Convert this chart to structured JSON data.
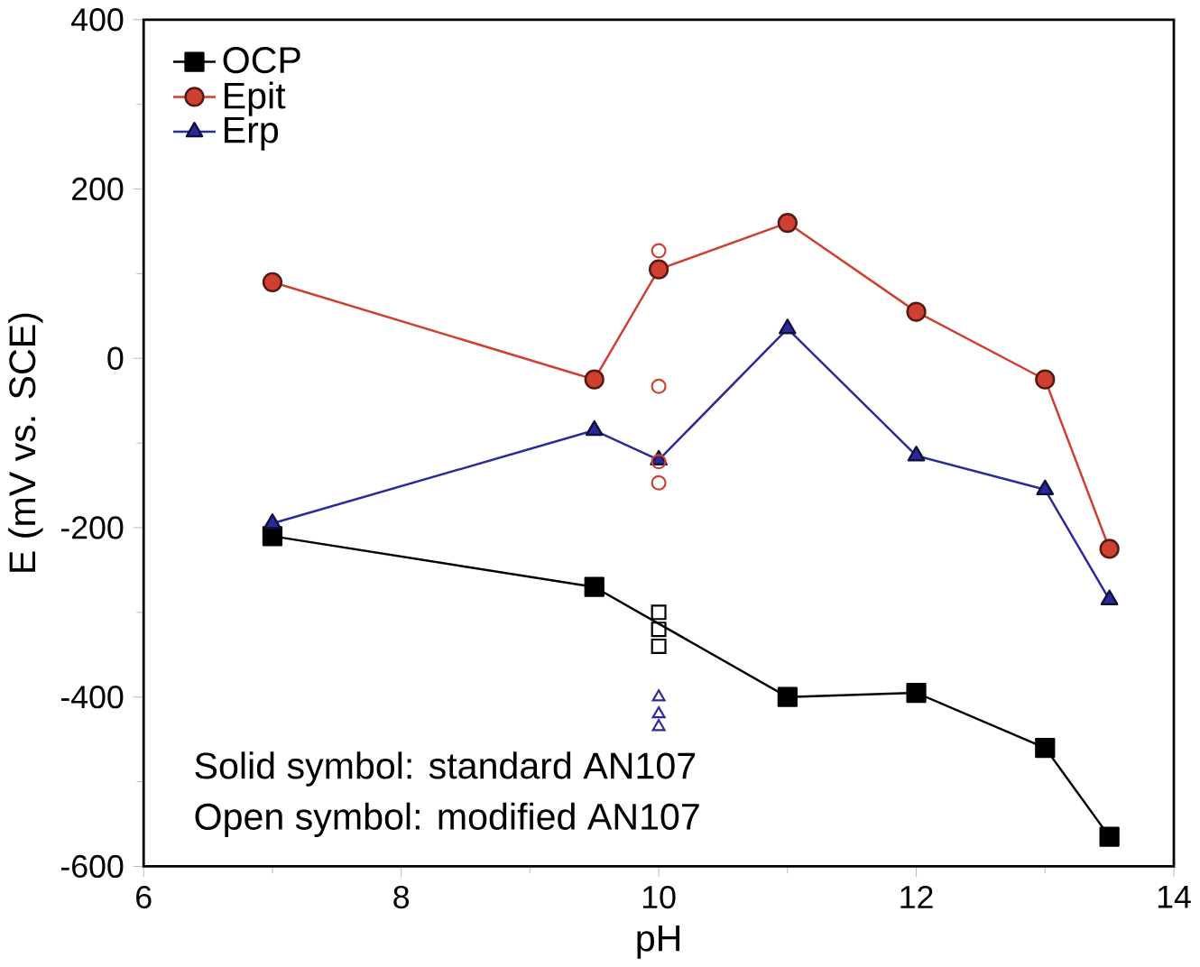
{
  "chart_data": {
    "type": "line",
    "xlabel": "pH",
    "ylabel": "E (mV vs. SCE)",
    "xlim": [
      6,
      14
    ],
    "xticks": [
      6,
      8,
      10,
      12,
      14
    ],
    "ylim": [
      -600,
      400
    ],
    "yticks": [
      -600,
      -400,
      -200,
      0,
      200,
      400
    ],
    "grid": false,
    "legend": "top left",
    "series": [
      {
        "name": "OCP",
        "color": "#000000",
        "marker": "square",
        "x": [
          7.0,
          9.5,
          11.0,
          12.0,
          13.0,
          13.5
        ],
        "values": [
          -210,
          -270,
          -400,
          -395,
          -460,
          -565
        ]
      },
      {
        "name": "Epit",
        "color": "#d04030",
        "marker": "circle",
        "x": [
          7.0,
          9.5,
          10.0,
          11.0,
          12.0,
          13.0,
          13.5
        ],
        "values": [
          90,
          -25,
          105,
          160,
          55,
          -25,
          -225
        ]
      },
      {
        "name": "Erp",
        "color": "#2a2a9a",
        "marker": "triangle",
        "x": [
          7.0,
          9.5,
          10.0,
          11.0,
          12.0,
          13.0,
          13.5
        ],
        "values": [
          -195,
          -85,
          -120,
          35,
          -115,
          -155,
          -285
        ]
      },
      {
        "type": "scatter",
        "color": "#000000",
        "marker": "square",
        "x": [
          10,
          10,
          10
        ],
        "values": [
          -300,
          -320,
          -340
        ]
      },
      {
        "type": "scatter",
        "color": "#d04030",
        "marker": "circle",
        "x": [
          10,
          10,
          10,
          10
        ],
        "values": [
          127,
          -33,
          -122,
          -147
        ]
      },
      {
        "type": "scatter",
        "color": "#2a2a9a",
        "marker": "triangle",
        "x": [
          10,
          10,
          10
        ],
        "values": [
          -400,
          -420,
          -435
        ]
      }
    ],
    "annotations": [
      "Solid symbol: standard AN107",
      "Open symbol: modified AN107"
    ]
  }
}
